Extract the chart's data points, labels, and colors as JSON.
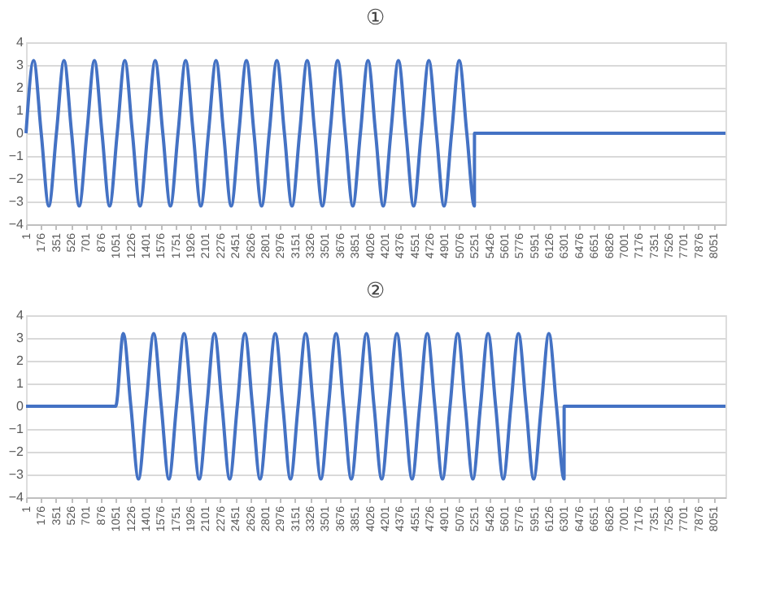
{
  "chart_data": [
    {
      "type": "line",
      "title": "①",
      "grid": "y",
      "line_style": "solid",
      "marker": "none",
      "ylim": [
        -4,
        4
      ],
      "yticks": [
        -4,
        -3,
        -2,
        -1,
        0,
        1,
        2,
        3,
        4
      ],
      "xlim": [
        1,
        8192
      ],
      "xticks": [
        1,
        176,
        351,
        526,
        701,
        876,
        1051,
        1226,
        1401,
        1576,
        1751,
        1926,
        2101,
        2276,
        2451,
        2626,
        2801,
        2976,
        3151,
        3326,
        3501,
        3676,
        3851,
        4026,
        4201,
        4376,
        4551,
        4726,
        4901,
        5076,
        5251,
        5426,
        5601,
        5776,
        5951,
        6126,
        6301,
        6476,
        6651,
        6826,
        7001,
        7176,
        7351,
        7526,
        7701,
        7876,
        8051
      ],
      "series": [
        {
          "color": "#4472c4",
          "x": [
            1,
            90,
            179,
            268,
            357,
            446,
            535,
            624,
            713,
            802,
            891,
            980,
            1069,
            1158,
            1247,
            1336,
            1425,
            1514,
            1603,
            1692,
            1781,
            1870,
            1959,
            2048,
            2137,
            2226,
            2315,
            2404,
            2493,
            2582,
            2671,
            2760,
            2849,
            2938,
            3027,
            3116,
            3205,
            3294,
            3383,
            3472,
            3561,
            3650,
            3739,
            3828,
            3917,
            4006,
            4095,
            4184,
            4273,
            4362,
            4451,
            4540,
            4629,
            4718,
            4807,
            4896,
            4985,
            5074,
            5163,
            5252,
            5253,
            8192
          ],
          "values": [
            0,
            3.2,
            0,
            -3.2,
            0,
            3.2,
            0,
            -3.2,
            0,
            3.2,
            0,
            -3.2,
            0,
            3.2,
            0,
            -3.2,
            0,
            3.2,
            0,
            -3.2,
            0,
            3.2,
            0,
            -3.2,
            0,
            3.2,
            0,
            -3.2,
            0,
            3.2,
            0,
            -3.2,
            0,
            3.2,
            0,
            -3.2,
            0,
            3.2,
            0,
            -3.2,
            0,
            3.2,
            0,
            -3.2,
            0,
            3.2,
            0,
            -3.2,
            0,
            3.2,
            0,
            -3.2,
            0,
            3.2,
            0,
            -3.2,
            0,
            3.2,
            0,
            -3.2,
            0,
            0
          ]
        }
      ]
    },
    {
      "type": "line",
      "title": "②",
      "grid": "y",
      "line_style": "solid",
      "marker": "none",
      "ylim": [
        -4,
        4
      ],
      "yticks": [
        -4,
        -3,
        -2,
        -1,
        0,
        1,
        2,
        3,
        4
      ],
      "xlim": [
        1,
        8192
      ],
      "xticks": [
        1,
        176,
        351,
        526,
        701,
        876,
        1051,
        1226,
        1401,
        1576,
        1751,
        1926,
        2101,
        2276,
        2451,
        2626,
        2801,
        2976,
        3151,
        3326,
        3501,
        3676,
        3851,
        4026,
        4201,
        4376,
        4551,
        4726,
        4901,
        5076,
        5251,
        5426,
        5601,
        5776,
        5951,
        6126,
        6301,
        6476,
        6651,
        6826,
        7001,
        7176,
        7351,
        7526,
        7701,
        7876,
        8051
      ],
      "series": [
        {
          "color": "#4472c4",
          "x": [
            1,
            1051,
            1140,
            1229,
            1318,
            1407,
            1496,
            1585,
            1674,
            1763,
            1852,
            1941,
            2030,
            2119,
            2208,
            2297,
            2386,
            2475,
            2564,
            2653,
            2742,
            2831,
            2920,
            3009,
            3098,
            3187,
            3276,
            3365,
            3454,
            3543,
            3632,
            3721,
            3810,
            3899,
            3988,
            4077,
            4166,
            4255,
            4344,
            4433,
            4522,
            4611,
            4700,
            4789,
            4878,
            4967,
            5056,
            5145,
            5234,
            5323,
            5412,
            5501,
            5590,
            5679,
            5768,
            5857,
            5946,
            6035,
            6124,
            6213,
            6302,
            6303,
            8192
          ],
          "values": [
            0,
            0,
            3.2,
            0,
            -3.2,
            0,
            3.2,
            0,
            -3.2,
            0,
            3.2,
            0,
            -3.2,
            0,
            3.2,
            0,
            -3.2,
            0,
            3.2,
            0,
            -3.2,
            0,
            3.2,
            0,
            -3.2,
            0,
            3.2,
            0,
            -3.2,
            0,
            3.2,
            0,
            -3.2,
            0,
            3.2,
            0,
            -3.2,
            0,
            3.2,
            0,
            -3.2,
            0,
            3.2,
            0,
            -3.2,
            0,
            3.2,
            0,
            -3.2,
            0,
            3.2,
            0,
            -3.2,
            0,
            3.2,
            0,
            -3.2,
            0,
            3.2,
            0,
            -3.2,
            0,
            0
          ]
        }
      ]
    }
  ]
}
